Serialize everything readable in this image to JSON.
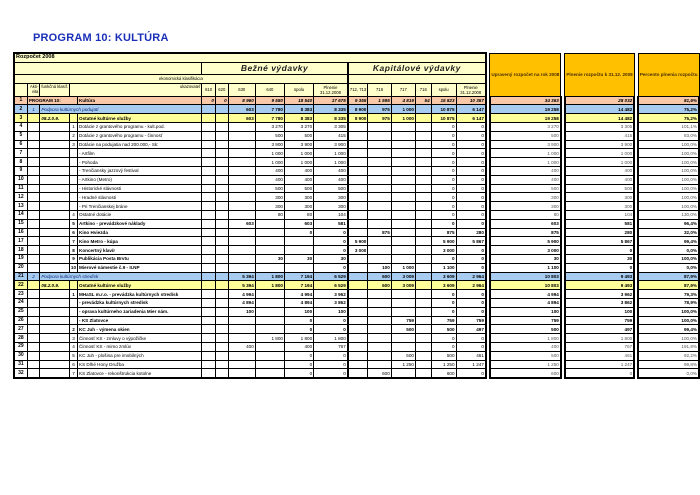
{
  "title": "PROGRAM 10:  KULTÚRA",
  "header": {
    "budget_label": "Rozpočet 2008",
    "current_expenses": "Bežné výdavky",
    "capital_expenses": "Kapitálové výdavky",
    "economic_classification": "ekonomická klasifikácia",
    "columns": [
      "",
      "Akti-vita",
      "funkčná klasif.",
      "ukazovateľ",
      "610",
      "620",
      "630",
      "640",
      "spolu",
      "Plnenie 31.12.2008",
      "712, 713",
      "716",
      "717",
      "716",
      "spolu",
      "Plnenie 31.12.2008"
    ],
    "adjusted_budget": "Upravený rozpočet na rok 2008",
    "budget_fulfilment": "Plnenie rozpočtu k 31.12. 2008",
    "fulfilment_percent": "Percento plnenia rozpočtu"
  },
  "colors": {
    "program_row": "#f8c8a8",
    "subprogram_row": "#a8ccf0",
    "function_row": "#ffff99",
    "header": "#ffffcc",
    "summary_header": "#ffc000",
    "title": "#1a2fb8"
  },
  "rows": [
    {
      "style": "program",
      "cells": [
        "1",
        "PROGRAM 10:",
        "",
        "",
        "Kultúra",
        "0",
        "0",
        "8 960",
        "9 580",
        "18 540",
        "17 675",
        "9 355",
        "1 595",
        "4 819",
        "54",
        "15 823",
        "10 357",
        "34 363",
        "28 032",
        "81,6%"
      ]
    },
    {
      "style": "sub",
      "cells": [
        "2",
        "1",
        "Podpora kultúrnych podujatí",
        "",
        "",
        "",
        "",
        "603",
        "7 780",
        "8 383",
        "8 335",
        "8 900",
        "975",
        "1 000",
        "",
        "10 875",
        "6 147",
        "19 258",
        "14 482",
        "75,2%"
      ]
    },
    {
      "style": "func",
      "cells": [
        "3",
        "",
        "08.2.0.9.",
        "",
        "Ostatné kultúrne služby",
        "",
        "",
        "603",
        "7 780",
        "8 383",
        "8 335",
        "8 900",
        "975",
        "1 000",
        "",
        "10 875",
        "6 147",
        "19 258",
        "14 482",
        "75,2%"
      ]
    },
    {
      "style": "normal",
      "cells": [
        "4",
        "",
        "",
        "1",
        "Dotácie z grantového programu - kult.pod.",
        "",
        "",
        "",
        "3 270",
        "3 270",
        "3 305",
        "",
        "",
        "",
        "",
        "0",
        "0",
        "3 270",
        "3 305",
        "101,1%"
      ]
    },
    {
      "style": "normal",
      "cells": [
        "5",
        "",
        "",
        "2",
        "Dotácie z grantového programu - činnosť",
        "",
        "",
        "",
        "500",
        "500",
        "415",
        "",
        "",
        "",
        "",
        "0",
        "0",
        "500",
        "415",
        "83,0%"
      ]
    },
    {
      "style": "normal",
      "cells": [
        "6",
        "",
        "",
        "3",
        "Dotácie na podujatia nad 200.000,- Sk:",
        "",
        "",
        "",
        "3 900",
        "3 900",
        "3 900",
        "",
        "",
        "",
        "",
        "0",
        "0",
        "3 900",
        "3 900",
        "100,0%"
      ]
    },
    {
      "style": "normal",
      "cells": [
        "7",
        "",
        "",
        "",
        "- Artfilm",
        "",
        "",
        "",
        "1 000",
        "1 000",
        "1 000",
        "",
        "",
        "",
        "",
        "0",
        "0",
        "1 000",
        "1 000",
        "100,0%"
      ]
    },
    {
      "style": "normal",
      "cells": [
        "8",
        "",
        "",
        "",
        "- Pohoda",
        "",
        "",
        "",
        "1 000",
        "1 000",
        "1 000",
        "",
        "",
        "",
        "",
        "0",
        "0",
        "1 000",
        "1 000",
        "100,0%"
      ]
    },
    {
      "style": "normal",
      "cells": [
        "9",
        "",
        "",
        "",
        "- Trenčiansky jazzový festival",
        "",
        "",
        "",
        "400",
        "400",
        "400",
        "",
        "",
        "",
        "",
        "0",
        "0",
        "400",
        "400",
        "100,0%"
      ]
    },
    {
      "style": "normal",
      "cells": [
        "10",
        "",
        "",
        "",
        "- Artkino (Metro)",
        "",
        "",
        "",
        "400",
        "400",
        "400",
        "",
        "",
        "",
        "",
        "0",
        "0",
        "400",
        "400",
        "100,0%"
      ]
    },
    {
      "style": "normal",
      "cells": [
        "11",
        "",
        "",
        "",
        "- Historické slávnosti",
        "",
        "",
        "",
        "500",
        "500",
        "500",
        "",
        "",
        "",
        "",
        "0",
        "0",
        "500",
        "500",
        "100,0%"
      ]
    },
    {
      "style": "normal",
      "cells": [
        "12",
        "",
        "",
        "",
        "- Hradné slávnosti",
        "",
        "",
        "",
        "300",
        "300",
        "300",
        "",
        "",
        "",
        "",
        "0",
        "0",
        "300",
        "300",
        "100,0%"
      ]
    },
    {
      "style": "normal",
      "cells": [
        "13",
        "",
        "",
        "",
        "- Pri Trenčianskej bráne",
        "",
        "",
        "",
        "300",
        "300",
        "300",
        "",
        "",
        "",
        "",
        "0",
        "0",
        "300",
        "300",
        "100,0%"
      ]
    },
    {
      "style": "normal",
      "cells": [
        "14",
        "",
        "",
        "4",
        "Ostatné dotácie",
        "",
        "",
        "",
        "80",
        "80",
        "104",
        "",
        "",
        "",
        "",
        "0",
        "0",
        "80",
        "104",
        "130,0%"
      ]
    },
    {
      "style": "bold",
      "cells": [
        "15",
        "",
        "",
        "5",
        "Artkino - prevádzkové náklady",
        "",
        "",
        "603",
        "",
        "603",
        "581",
        "",
        "",
        "",
        "",
        "0",
        "0",
        "603",
        "581",
        "96,4%"
      ]
    },
    {
      "style": "bold",
      "cells": [
        "16",
        "",
        "",
        "6",
        "Kino Hviezda",
        "",
        "",
        "",
        "",
        "0",
        "0",
        "",
        "875",
        "",
        "",
        "875",
        "280",
        "875",
        "280",
        "32,0%"
      ]
    },
    {
      "style": "bold",
      "cells": [
        "17",
        "",
        "",
        "7",
        "Kino Metro - kúpa",
        "",
        "",
        "",
        "",
        "",
        "0",
        "5 900",
        "",
        "",
        "",
        "5 900",
        "5 867",
        "5 900",
        "5 867",
        "99,4%"
      ]
    },
    {
      "style": "bold",
      "cells": [
        "18",
        "",
        "",
        "8",
        "Koncertný klavír",
        "",
        "",
        "",
        "",
        "",
        "0",
        "3 000",
        "",
        "",
        "",
        "3 000",
        "0",
        "3 000",
        "0",
        "0,0%"
      ]
    },
    {
      "style": "bold",
      "cells": [
        "19",
        "",
        "",
        "9",
        "Publikácia Posta Brvtu",
        "",
        "",
        "",
        "30",
        "30",
        "30",
        "",
        "",
        "",
        "",
        "0",
        "0",
        "30",
        "30",
        "100,0%"
      ]
    },
    {
      "style": "bold",
      "cells": [
        "20",
        "",
        "",
        "10",
        "Mierové námestie č.9 - II.NP",
        "",
        "",
        "",
        "",
        "",
        "0",
        "",
        "100",
        "1 000",
        "",
        "1 100",
        "0",
        "1 100",
        "0",
        "0,0%"
      ]
    },
    {
      "style": "sub",
      "cells": [
        "21",
        "2",
        "Podpora kultúrnych stredísk",
        "",
        "",
        "",
        "",
        "5 394",
        "1 800",
        "7 194",
        "6 529",
        "",
        "600",
        "3 009",
        "",
        "3 609",
        "2 964",
        "10 803",
        "9 493",
        "87,9%"
      ]
    },
    {
      "style": "func",
      "cells": [
        "22",
        "",
        "08.2.0.9.",
        "",
        "Ostatné kultúrne služby",
        "",
        "",
        "5 394",
        "1 800",
        "7 194",
        "6 529",
        "",
        "600",
        "3 009",
        "",
        "3 609",
        "2 964",
        "10 803",
        "9 493",
        "87,9%"
      ]
    },
    {
      "style": "bold",
      "cells": [
        "23",
        "",
        "",
        "1",
        "MHaSL m.r.o. - prevádzka kultúrnych stredísk",
        "",
        "",
        "4 994",
        "",
        "4 994",
        "3 962",
        "",
        "",
        "",
        "",
        "0",
        "0",
        "4 994",
        "3 962",
        "79,3%"
      ]
    },
    {
      "style": "bold",
      "cells": [
        "24",
        "",
        "",
        "",
        "- prevádzka kultúrnych stredísk",
        "",
        "",
        "4 894",
        "",
        "4 894",
        "3 862",
        "",
        "",
        "",
        "",
        "0",
        "0",
        "4 894",
        "3 862",
        "78,9%"
      ]
    },
    {
      "style": "bold",
      "cells": [
        "25",
        "",
        "",
        "",
        "- oprava kultúrneho zariadenia Mier nám.",
        "",
        "",
        "100",
        "",
        "100",
        "100",
        "",
        "",
        "",
        "",
        "0",
        "0",
        "100",
        "100",
        "100,0%"
      ]
    },
    {
      "style": "bold",
      "cells": [
        "26",
        "",
        "",
        "",
        "- KS Zlatovce",
        "",
        "",
        "",
        "",
        "0",
        "0",
        "",
        "",
        "759",
        "",
        "759",
        "759",
        "759",
        "759",
        "100,0%"
      ]
    },
    {
      "style": "bold",
      "cells": [
        "27",
        "",
        "",
        "2",
        "KC Juh - výmena okien",
        "",
        "",
        "",
        "",
        "0",
        "0",
        "",
        "",
        "500",
        "",
        "500",
        "497",
        "500",
        "497",
        "99,4%"
      ]
    },
    {
      "style": "normal",
      "cells": [
        "28",
        "",
        "",
        "3",
        "Činnosť KS - zmluvy o výpožičke",
        "",
        "",
        "",
        "1 800",
        "1 800",
        "1 800",
        "",
        "",
        "",
        "",
        "0",
        "0",
        "1 800",
        "1 800",
        "100,0%"
      ]
    },
    {
      "style": "normal",
      "cells": [
        "29",
        "",
        "",
        "4",
        "Činnosť KS - mimo zmlúv",
        "",
        "",
        "400",
        "",
        "400",
        "767",
        "",
        "",
        "",
        "",
        "0",
        "0",
        "400",
        "767",
        "191,8%"
      ]
    },
    {
      "style": "normal",
      "cells": [
        "30",
        "",
        "",
        "5",
        "KC Juh - plošina pre imobilných",
        "",
        "",
        "",
        "",
        "0",
        "0",
        "",
        "",
        "500",
        "",
        "500",
        "461",
        "500",
        "461",
        "92,2%"
      ]
    },
    {
      "style": "normal",
      "cells": [
        "31",
        "",
        "",
        "6",
        "KS Dlhé Hony Družba",
        "",
        "",
        "",
        "",
        "0",
        "0",
        "",
        "",
        "1 250",
        "",
        "1 250",
        "1 247",
        "1 250",
        "1 247",
        "99,8%"
      ]
    },
    {
      "style": "normal",
      "cells": [
        "32",
        "",
        "",
        "7",
        "KS Zlatovce - rekonštrukcia kotolne",
        "",
        "",
        "",
        "",
        "0",
        "0",
        "",
        "600",
        "",
        "",
        "600",
        "0",
        "600",
        "0",
        "0,0%"
      ]
    }
  ]
}
